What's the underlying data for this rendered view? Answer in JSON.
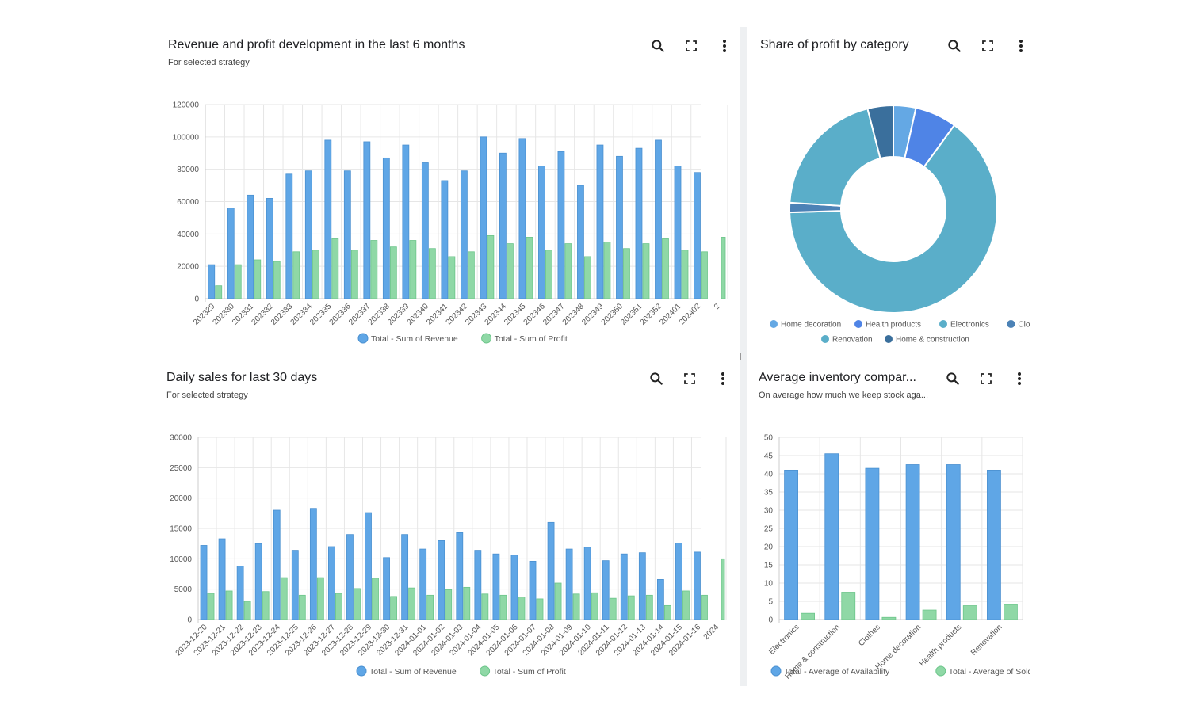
{
  "colors": {
    "revenue": "#5fa6e6",
    "revenue_stroke": "#4a90d0",
    "profit": "#8fd8a6",
    "profit_stroke": "#6cc58a",
    "grid": "#e6e6e6",
    "axis_text": "#555555"
  },
  "icons": {
    "search": "search-icon",
    "fullscreen": "fullscreen-icon",
    "more": "more-vert-icon"
  },
  "panels": {
    "revenue_profit": {
      "title": "Revenue and profit development in the last 6 months",
      "subtitle": "For selected strategy"
    },
    "share_profit": {
      "title": "Share of profit by category",
      "subtitle": ""
    },
    "daily_sales": {
      "title": "Daily sales for last 30 days",
      "subtitle": "For selected strategy"
    },
    "avg_inventory": {
      "title": "Average inventory compar...",
      "subtitle": "On average how much we keep stock aga..."
    }
  },
  "chart_data": [
    {
      "id": "revenue_profit",
      "type": "bar",
      "yticks": [
        "0",
        "20000",
        "40000",
        "60000",
        "80000",
        "100000",
        "120000"
      ],
      "ylim": [
        0,
        120000
      ],
      "categories": [
        "202329",
        "202330",
        "202331",
        "202332",
        "202333",
        "202334",
        "202335",
        "202336",
        "202337",
        "202338",
        "202339",
        "202340",
        "202341",
        "202342",
        "202343",
        "202344",
        "202345",
        "202346",
        "202347",
        "202348",
        "202349",
        "202350",
        "202351",
        "202352",
        "202401",
        "202402",
        "2"
      ],
      "series": [
        {
          "name": "Total - Sum of Revenue",
          "values": [
            21000,
            56000,
            64000,
            62000,
            77000,
            79000,
            98000,
            79000,
            97000,
            87000,
            95000,
            84000,
            73000,
            79000,
            100000,
            90000,
            99000,
            82000,
            91000,
            70000,
            95000,
            88000,
            93000,
            98000,
            82000,
            78000,
            null
          ]
        },
        {
          "name": "Total - Sum of Profit",
          "values": [
            8000,
            21000,
            24000,
            23000,
            29000,
            30000,
            37000,
            30000,
            36000,
            32000,
            36000,
            31000,
            26000,
            29000,
            39000,
            34000,
            38000,
            30000,
            34000,
            26000,
            35000,
            31000,
            34000,
            37000,
            30000,
            29000,
            null
          ]
        }
      ],
      "legend": "bottom"
    },
    {
      "id": "share_profit",
      "type": "pie",
      "slices": [
        {
          "label": "Home decoration",
          "value": 3.5,
          "color": "#64a8e4"
        },
        {
          "label": "Health products",
          "value": 6.5,
          "color": "#4f84e6"
        },
        {
          "label": "Renovation",
          "value": 64.5,
          "color": "#5aaec9"
        },
        {
          "label": "Clothes",
          "value": 1.5,
          "color": "#4c82b6"
        },
        {
          "label": "Electronics",
          "value": 20.0,
          "color": "#5aaec9"
        },
        {
          "label": "Home & construction",
          "value": 4.0,
          "color": "#3a6f9c"
        }
      ],
      "legend_order": [
        "Home decoration",
        "Health products",
        "Electronics",
        "Clothes",
        "Renovation",
        "Home & construction"
      ],
      "legend": "bottom"
    },
    {
      "id": "daily_sales",
      "type": "bar",
      "yticks": [
        "0",
        "5000",
        "10000",
        "15000",
        "20000",
        "25000",
        "30000"
      ],
      "ylim": [
        0,
        30000
      ],
      "categories": [
        "2023-12-20",
        "2023-12-21",
        "2023-12-22",
        "2023-12-23",
        "2023-12-24",
        "2023-12-25",
        "2023-12-26",
        "2023-12-27",
        "2023-12-28",
        "2023-12-29",
        "2023-12-30",
        "2023-12-31",
        "2024-01-01",
        "2024-01-02",
        "2024-01-03",
        "2024-01-04",
        "2024-01-05",
        "2024-01-06",
        "2024-01-07",
        "2024-01-08",
        "2024-01-09",
        "2024-01-10",
        "2024-01-11",
        "2024-01-12",
        "2024-01-13",
        "2024-01-14",
        "2024-01-15",
        "2024-01-16",
        "2024"
      ],
      "series": [
        {
          "name": "Total - Sum of Revenue",
          "values": [
            12200,
            13300,
            8800,
            12500,
            18000,
            11400,
            18300,
            12000,
            14000,
            17600,
            10200,
            14000,
            11600,
            13000,
            14300,
            11400,
            10800,
            10600,
            9600,
            16000,
            11600,
            11900,
            9700,
            10800,
            11000,
            6600,
            12600,
            11100,
            null
          ]
        },
        {
          "name": "Total - Sum of Profit",
          "values": [
            4300,
            4700,
            3000,
            4600,
            6900,
            4000,
            6900,
            4300,
            5100,
            6800,
            3800,
            5200,
            4000,
            4900,
            5300,
            4200,
            4000,
            3700,
            3400,
            6000,
            4200,
            4400,
            3500,
            3900,
            4000,
            2300,
            4700,
            4000,
            null
          ]
        }
      ],
      "legend": "bottom"
    },
    {
      "id": "avg_inventory",
      "type": "bar",
      "yticks": [
        "0",
        "5",
        "10",
        "15",
        "20",
        "25",
        "30",
        "35",
        "40",
        "45",
        "50"
      ],
      "ylim": [
        0,
        50
      ],
      "categories": [
        "Electronics",
        "Home & construction",
        "Clothes",
        "Home decoration",
        "Health products",
        "Renovation"
      ],
      "series": [
        {
          "name": "Total - Average of Availability",
          "values": [
            41,
            45.5,
            41.5,
            42.5,
            42.5,
            41
          ]
        },
        {
          "name": "Total - Average of Sold quantity",
          "values": [
            1.7,
            7.5,
            0.6,
            2.6,
            3.8,
            4.1
          ]
        }
      ],
      "legend": "bottom"
    }
  ]
}
